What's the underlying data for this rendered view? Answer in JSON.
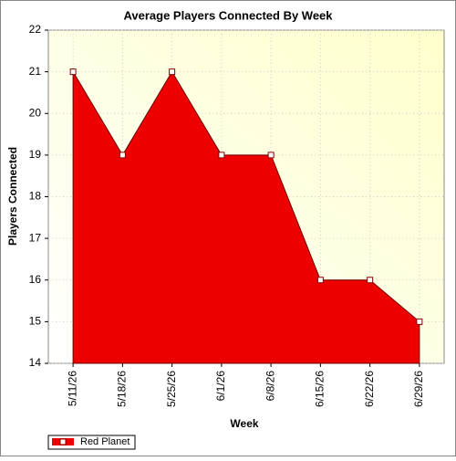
{
  "chart_data": {
    "type": "area",
    "title": "Average Players Connected By Week",
    "x_label": "Week",
    "y_label": "Players Connected",
    "categories": [
      "5/11/26",
      "5/18/26",
      "5/25/26",
      "6/1/26",
      "6/8/26",
      "6/15/26",
      "6/22/26",
      "6/29/26"
    ],
    "series": [
      {
        "name": "Red Planet",
        "color": "#ee0000",
        "values": [
          21,
          19,
          21,
          19,
          19,
          16,
          16,
          15
        ]
      }
    ],
    "ylim": [
      14,
      22
    ],
    "yticks": [
      14,
      15,
      16,
      17,
      18,
      19,
      20,
      21,
      22
    ],
    "grid": true,
    "legend": "bottom-left"
  }
}
